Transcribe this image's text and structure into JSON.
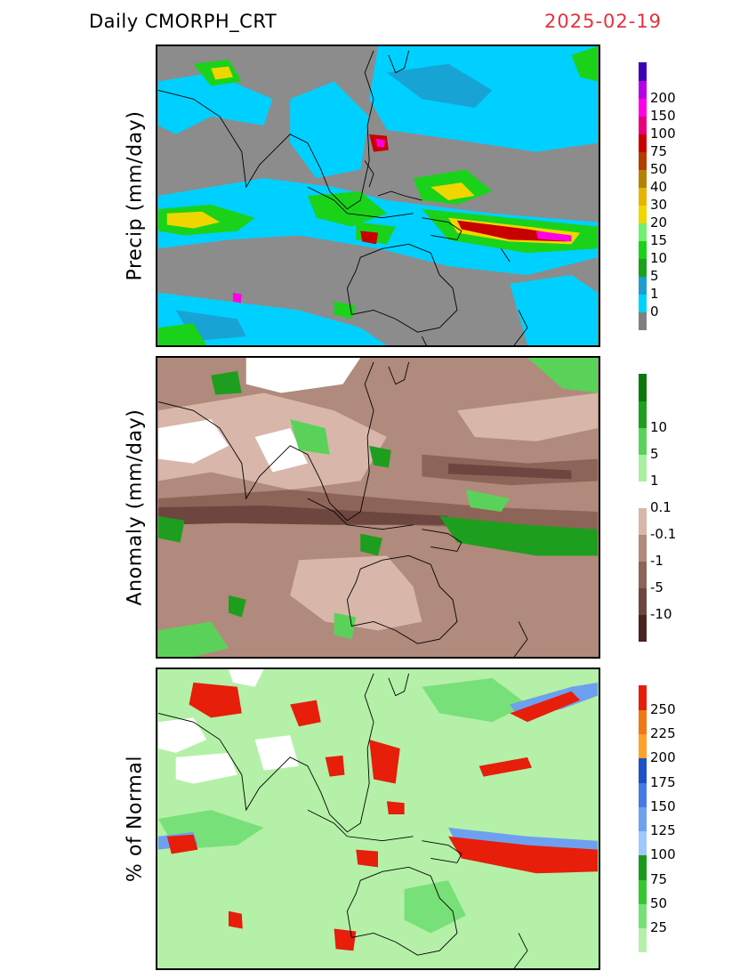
{
  "header": {
    "title": "Daily  CMORPH_CRT",
    "date": "2025-02-19",
    "date_color": "#e8303a"
  },
  "panels": [
    {
      "id": "precip",
      "ylabel": "Precip  (mm/day)",
      "background_color": "#8c8c8c",
      "colorbar": {
        "colors": [
          "#808080",
          "#00d0ff",
          "#1a9ed0",
          "#1aa01a",
          "#1ad21a",
          "#70f070",
          "#f0d600",
          "#e6b400",
          "#b48200",
          "#b43c00",
          "#c80000",
          "#e6007a",
          "#ff00e6",
          "#b400e6",
          "#3c00b4"
        ],
        "labels": [
          "0",
          "1",
          "5",
          "10",
          "15",
          "20",
          "30",
          "40",
          "50",
          "75",
          "100",
          "150",
          "200"
        ]
      }
    },
    {
      "id": "anomaly",
      "ylabel": "Anomaly  (mm/day)",
      "background_color": "#b08a7c",
      "colorbar": {
        "colors": [
          "#4a2420",
          "#6e4640",
          "#8c6458",
          "#b08a7c",
          "#d8b6aa",
          "#ffffff",
          "#a8f0a0",
          "#5ad25a",
          "#1e9e1e",
          "#0a780a"
        ],
        "labels": [
          "-10",
          "-5",
          "-1",
          "-0.1",
          "0.1",
          "1",
          "5",
          "10"
        ]
      }
    },
    {
      "id": "pct-normal",
      "ylabel": "%  of  Normal",
      "background_color": "#b4f0a8",
      "colorbar": {
        "colors": [
          "#b4f0a8",
          "#78e078",
          "#32c832",
          "#1a9a1a",
          "#a0c8ff",
          "#6ea0f0",
          "#4678e6",
          "#1e50c8",
          "#ffa028",
          "#f07814",
          "#e61e0a"
        ],
        "labels": [
          "25",
          "50",
          "75",
          "100",
          "125",
          "150",
          "175",
          "200",
          "225",
          "250"
        ]
      }
    }
  ]
}
